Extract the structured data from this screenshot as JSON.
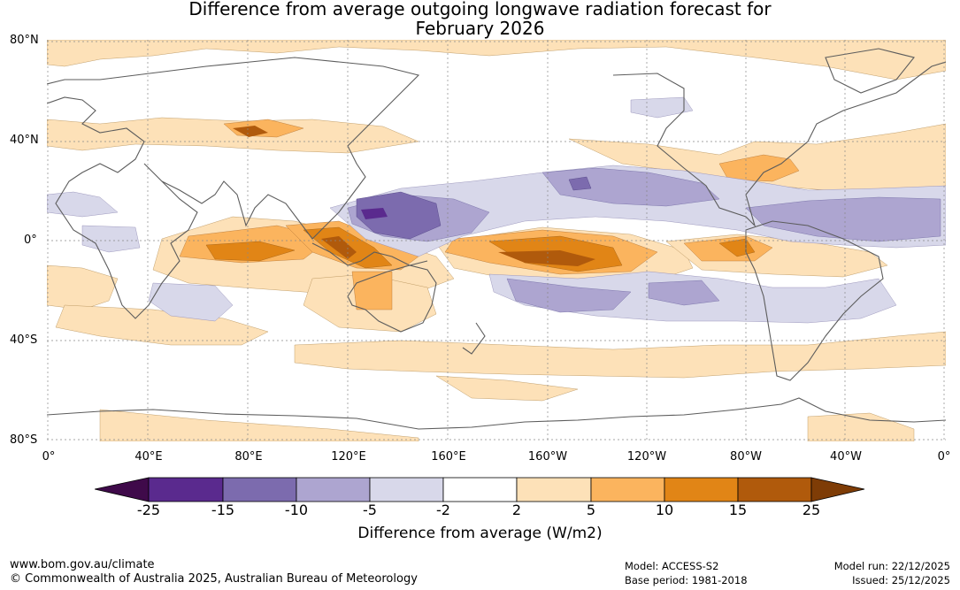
{
  "title": {
    "line1": "Difference from average outgoing longwave radiation forecast for",
    "line2": "February 2026"
  },
  "y_axis": [
    "80°N",
    "40°N",
    "0°",
    "40°S",
    "80°S"
  ],
  "x_axis": [
    "0°",
    "40°E",
    "80°E",
    "120°E",
    "160°E",
    "160°W",
    "120°W",
    "80°W",
    "40°W",
    "0°"
  ],
  "colorbar": {
    "ticks": [
      "-25",
      "-15",
      "-10",
      "-5",
      "-2",
      "2",
      "5",
      "10",
      "15",
      "25"
    ],
    "colors": [
      "#3f0a4a",
      "#5a2a8e",
      "#7c6bae",
      "#ada5d0",
      "#d8d8ea",
      "#ffffff",
      "#fde1b8",
      "#fbb45e",
      "#e18516",
      "#b05a0c",
      "#7e3c06"
    ],
    "label": "Difference from average (W/m2)"
  },
  "footer": {
    "website": "www.bom.gov.au/climate",
    "copyright": "© Commonwealth of Australia 2025, Australian Bureau of Meteorology",
    "model": "Model: ACCESS-S2",
    "base_period": "Base period: 1981-2018",
    "model_run": "Model run: 22/12/2025",
    "issued": "Issued: 25/12/2025"
  }
}
